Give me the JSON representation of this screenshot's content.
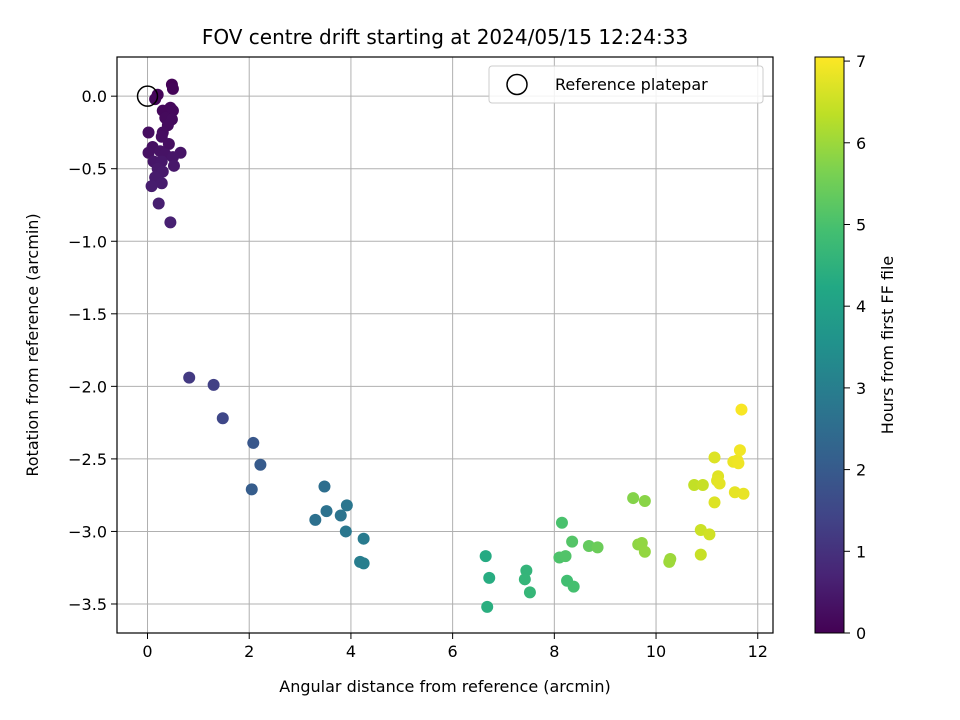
{
  "chart_data": {
    "type": "scatter",
    "title": "FOV centre drift starting at 2024/05/15 12:24:33",
    "xlabel": "Angular distance from reference (arcmin)",
    "ylabel": "Rotation from reference (arcmin)",
    "xlim": [
      -0.6,
      12.3
    ],
    "ylim": [
      -3.7,
      0.27
    ],
    "xticks": [
      0,
      2,
      4,
      6,
      8,
      10,
      12
    ],
    "yticks": [
      0.0,
      -0.5,
      -1.0,
      -1.5,
      -2.0,
      -2.5,
      -3.0,
      -3.5
    ],
    "xtick_labels": [
      "0",
      "2",
      "4",
      "6",
      "8",
      "10",
      "12"
    ],
    "ytick_labels": [
      "0.0",
      "−0.5",
      "−1.0",
      "−1.5",
      "−2.0",
      "−2.5",
      "−3.0",
      "−3.5"
    ],
    "grid": true,
    "legend": {
      "placement": "top-right",
      "entries": [
        "Reference platepar"
      ]
    },
    "reference_point": {
      "name": "Reference platepar",
      "x": 0.0,
      "y": 0.0
    },
    "colorbar": {
      "label": "Hours from first FF file",
      "range": [
        0,
        7.05
      ],
      "ticks": [
        0,
        1,
        2,
        3,
        4,
        5,
        6,
        7
      ],
      "tick_labels": [
        "0",
        "1",
        "2",
        "3",
        "4",
        "5",
        "6",
        "7"
      ],
      "colormap": "viridis"
    },
    "points": [
      {
        "x": 0.48,
        "y": 0.08,
        "t": 0.05
      },
      {
        "x": 0.5,
        "y": 0.05,
        "t": 0.08
      },
      {
        "x": 0.2,
        "y": 0.01,
        "t": 0.1
      },
      {
        "x": 0.15,
        "y": -0.02,
        "t": 0.12
      },
      {
        "x": 0.45,
        "y": -0.08,
        "t": 0.14
      },
      {
        "x": 0.3,
        "y": -0.1,
        "t": 0.15
      },
      {
        "x": 0.5,
        "y": -0.1,
        "t": 0.17
      },
      {
        "x": 0.35,
        "y": -0.15,
        "t": 0.18
      },
      {
        "x": 0.48,
        "y": -0.16,
        "t": 0.2
      },
      {
        "x": 0.4,
        "y": -0.2,
        "t": 0.22
      },
      {
        "x": 0.3,
        "y": -0.25,
        "t": 0.24
      },
      {
        "x": 0.02,
        "y": -0.25,
        "t": 0.25
      },
      {
        "x": 0.28,
        "y": -0.28,
        "t": 0.27
      },
      {
        "x": 0.42,
        "y": -0.33,
        "t": 0.28
      },
      {
        "x": 0.1,
        "y": -0.35,
        "t": 0.3
      },
      {
        "x": 0.02,
        "y": -0.39,
        "t": 0.32
      },
      {
        "x": 0.25,
        "y": -0.38,
        "t": 0.34
      },
      {
        "x": 0.35,
        "y": -0.4,
        "t": 0.36
      },
      {
        "x": 0.65,
        "y": -0.39,
        "t": 0.38
      },
      {
        "x": 0.5,
        "y": -0.42,
        "t": 0.4
      },
      {
        "x": 0.12,
        "y": -0.45,
        "t": 0.42
      },
      {
        "x": 0.28,
        "y": -0.45,
        "t": 0.44
      },
      {
        "x": 0.52,
        "y": -0.48,
        "t": 0.46
      },
      {
        "x": 0.2,
        "y": -0.5,
        "t": 0.48
      },
      {
        "x": 0.3,
        "y": -0.52,
        "t": 0.5
      },
      {
        "x": 0.15,
        "y": -0.56,
        "t": 0.52
      },
      {
        "x": 0.28,
        "y": -0.6,
        "t": 0.54
      },
      {
        "x": 0.08,
        "y": -0.62,
        "t": 0.56
      },
      {
        "x": 0.22,
        "y": -0.74,
        "t": 0.6
      },
      {
        "x": 0.45,
        "y": -0.87,
        "t": 0.65
      },
      {
        "x": 0.82,
        "y": -1.94,
        "t": 1.2
      },
      {
        "x": 1.3,
        "y": -1.99,
        "t": 1.35
      },
      {
        "x": 1.48,
        "y": -2.22,
        "t": 1.5
      },
      {
        "x": 2.08,
        "y": -2.39,
        "t": 1.9
      },
      {
        "x": 2.22,
        "y": -2.54,
        "t": 2.0
      },
      {
        "x": 2.05,
        "y": -2.71,
        "t": 2.05
      },
      {
        "x": 3.48,
        "y": -2.69,
        "t": 2.55
      },
      {
        "x": 3.3,
        "y": -2.92,
        "t": 2.6
      },
      {
        "x": 3.52,
        "y": -2.86,
        "t": 2.65
      },
      {
        "x": 3.8,
        "y": -2.89,
        "t": 2.7
      },
      {
        "x": 3.92,
        "y": -2.82,
        "t": 2.75
      },
      {
        "x": 3.9,
        "y": -3.0,
        "t": 2.8
      },
      {
        "x": 4.25,
        "y": -3.05,
        "t": 2.9
      },
      {
        "x": 4.18,
        "y": -3.21,
        "t": 2.95
      },
      {
        "x": 4.25,
        "y": -3.22,
        "t": 3.0
      },
      {
        "x": 6.65,
        "y": -3.17,
        "t": 4.3
      },
      {
        "x": 6.72,
        "y": -3.32,
        "t": 4.35
      },
      {
        "x": 6.68,
        "y": -3.52,
        "t": 4.4
      },
      {
        "x": 7.45,
        "y": -3.27,
        "t": 4.6
      },
      {
        "x": 7.42,
        "y": -3.33,
        "t": 4.62
      },
      {
        "x": 7.52,
        "y": -3.42,
        "t": 4.65
      },
      {
        "x": 8.15,
        "y": -2.94,
        "t": 5.0
      },
      {
        "x": 8.1,
        "y": -3.18,
        "t": 5.05
      },
      {
        "x": 8.22,
        "y": -3.17,
        "t": 5.1
      },
      {
        "x": 8.35,
        "y": -3.07,
        "t": 5.15
      },
      {
        "x": 8.25,
        "y": -3.34,
        "t": 4.9
      },
      {
        "x": 8.38,
        "y": -3.38,
        "t": 4.95
      },
      {
        "x": 8.68,
        "y": -3.1,
        "t": 5.35
      },
      {
        "x": 8.85,
        "y": -3.11,
        "t": 5.45
      },
      {
        "x": 9.55,
        "y": -2.77,
        "t": 5.75
      },
      {
        "x": 9.78,
        "y": -2.79,
        "t": 5.8
      },
      {
        "x": 9.65,
        "y": -3.09,
        "t": 5.85
      },
      {
        "x": 9.72,
        "y": -3.08,
        "t": 5.88
      },
      {
        "x": 9.78,
        "y": -3.14,
        "t": 5.9
      },
      {
        "x": 10.28,
        "y": -3.19,
        "t": 6.0
      },
      {
        "x": 10.26,
        "y": -3.21,
        "t": 6.02
      },
      {
        "x": 10.75,
        "y": -2.68,
        "t": 6.4
      },
      {
        "x": 10.92,
        "y": -2.68,
        "t": 6.45
      },
      {
        "x": 10.88,
        "y": -2.99,
        "t": 6.5
      },
      {
        "x": 11.05,
        "y": -3.02,
        "t": 6.55
      },
      {
        "x": 10.88,
        "y": -3.16,
        "t": 6.45
      },
      {
        "x": 11.15,
        "y": -2.49,
        "t": 6.7
      },
      {
        "x": 11.22,
        "y": -2.62,
        "t": 6.72
      },
      {
        "x": 11.2,
        "y": -2.65,
        "t": 6.75
      },
      {
        "x": 11.25,
        "y": -2.67,
        "t": 6.78
      },
      {
        "x": 11.15,
        "y": -2.8,
        "t": 6.7
      },
      {
        "x": 11.52,
        "y": -2.52,
        "t": 6.85
      },
      {
        "x": 11.6,
        "y": -2.51,
        "t": 6.88
      },
      {
        "x": 11.62,
        "y": -2.53,
        "t": 6.9
      },
      {
        "x": 11.65,
        "y": -2.44,
        "t": 6.92
      },
      {
        "x": 11.55,
        "y": -2.73,
        "t": 6.8
      },
      {
        "x": 11.72,
        "y": -2.74,
        "t": 6.82
      },
      {
        "x": 11.68,
        "y": -2.16,
        "t": 7.0
      }
    ]
  }
}
